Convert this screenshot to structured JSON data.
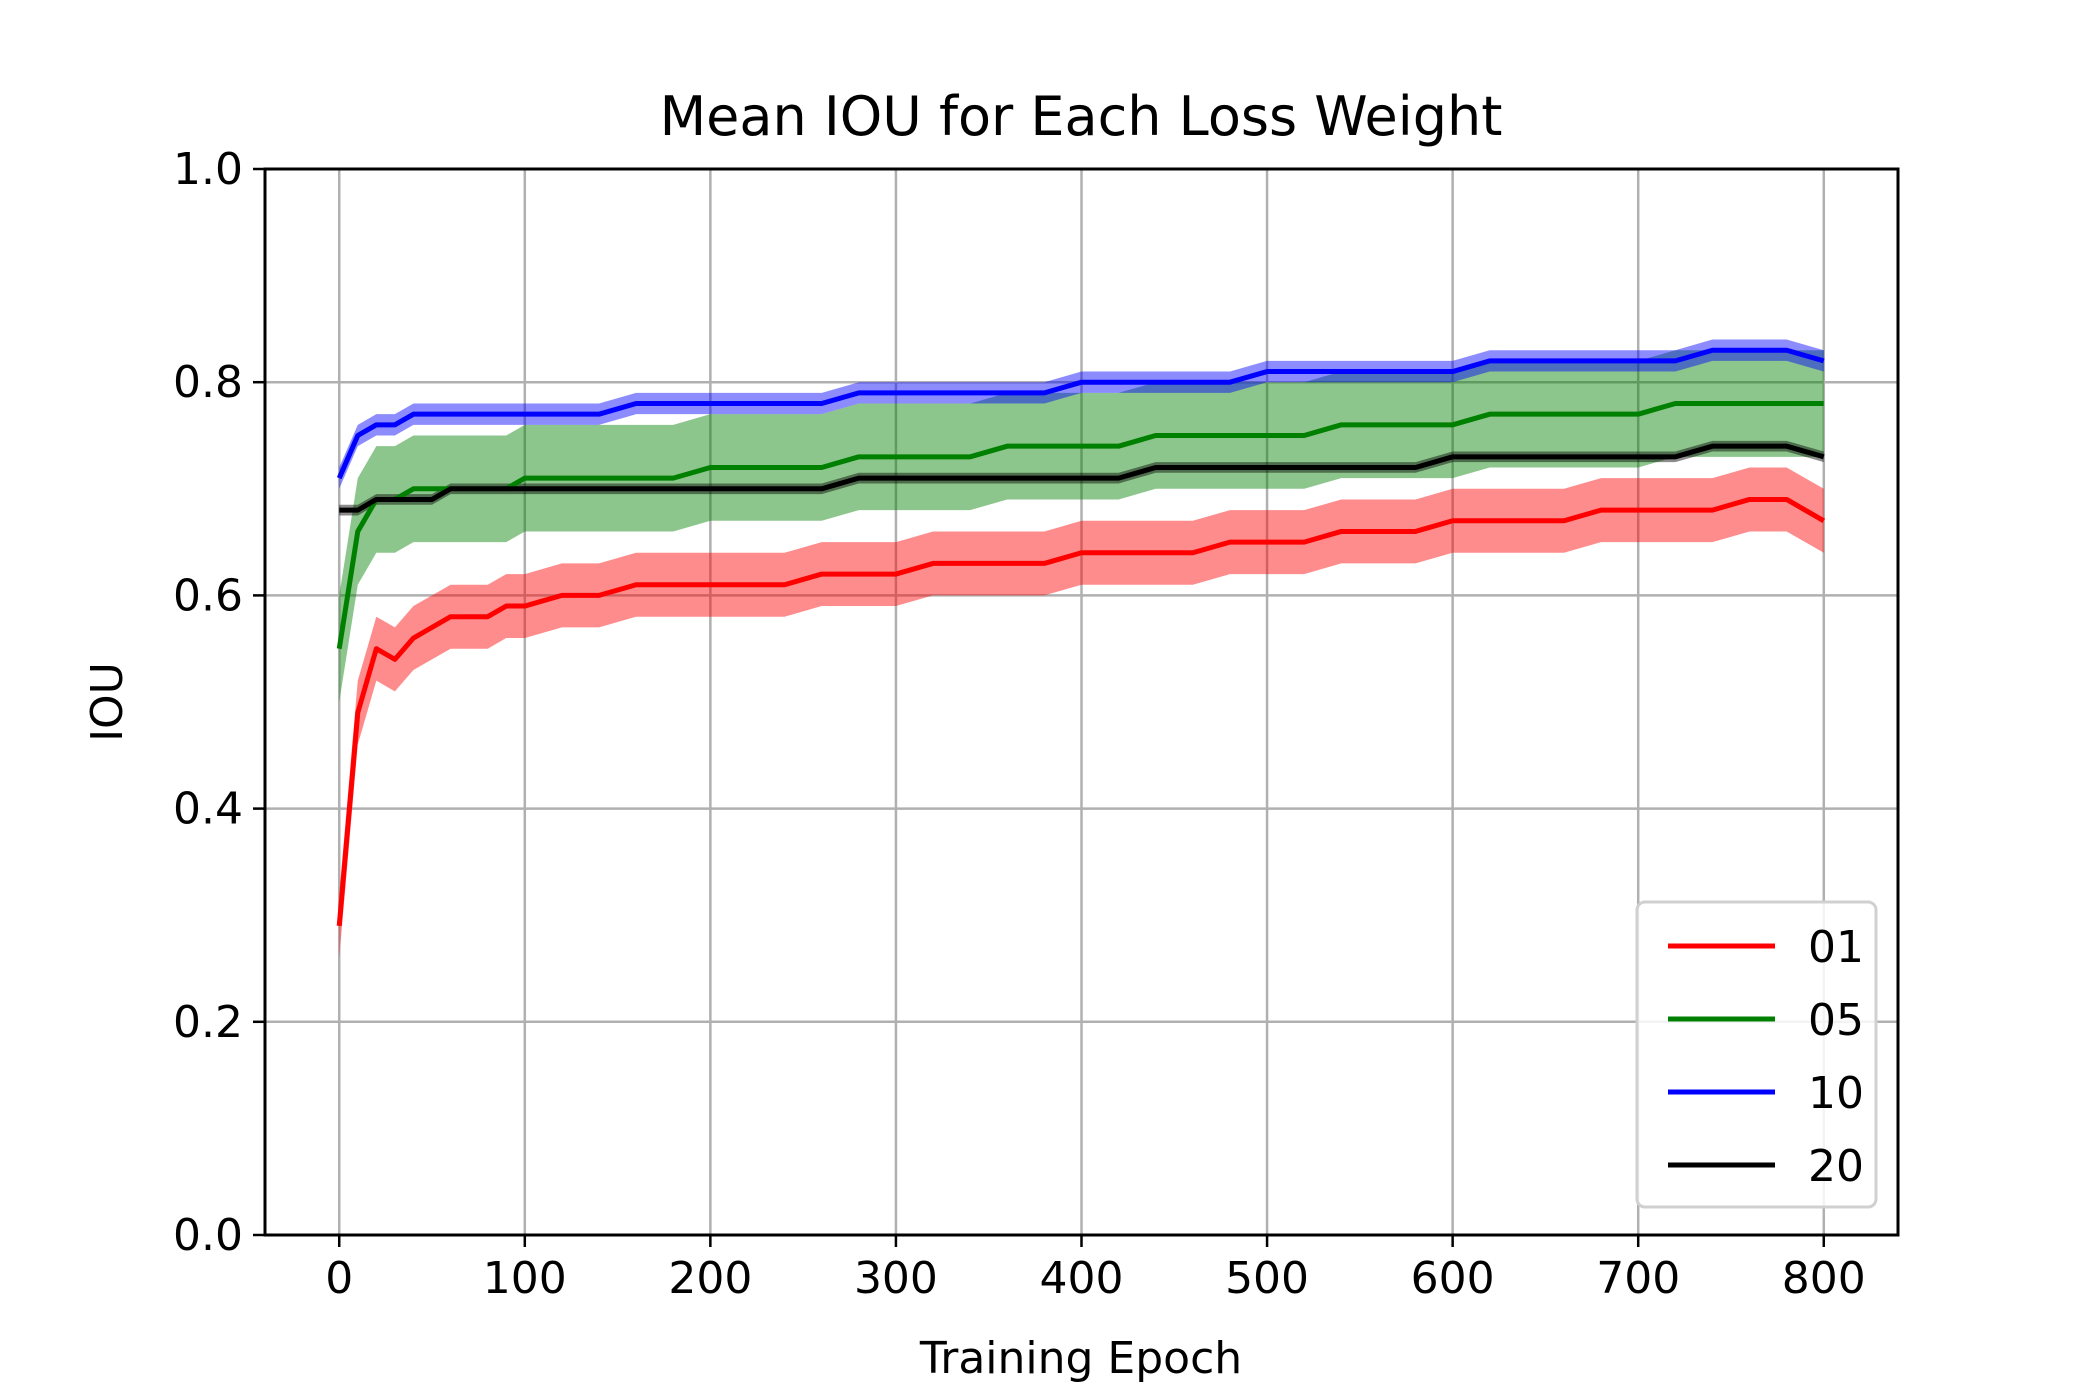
{
  "chart_data": {
    "type": "line",
    "title": "Mean IOU for Each Loss Weight",
    "xlabel": "Training Epoch",
    "ylabel": "IOU",
    "xlim": [
      -40,
      840
    ],
    "ylim": [
      0.0,
      1.0
    ],
    "xticks": [
      0,
      100,
      200,
      300,
      400,
      500,
      600,
      700,
      800
    ],
    "yticks": [
      0.0,
      0.2,
      0.4,
      0.6,
      0.8,
      1.0
    ],
    "xtick_labels": [
      "0",
      "100",
      "200",
      "300",
      "400",
      "500",
      "600",
      "700",
      "800"
    ],
    "ytick_labels": [
      "0.0",
      "0.2",
      "0.4",
      "0.6",
      "0.8",
      "1.0"
    ],
    "grid": true,
    "legend_position": "bottom-right",
    "shaded_band": "mean ± variation",
    "series": [
      {
        "name": "01",
        "color": "#ff0000",
        "x": [
          0,
          10,
          20,
          30,
          40,
          50,
          60,
          70,
          80,
          90,
          100,
          120,
          140,
          160,
          180,
          200,
          220,
          240,
          260,
          280,
          300,
          320,
          340,
          360,
          380,
          400,
          420,
          440,
          460,
          480,
          500,
          520,
          540,
          560,
          580,
          600,
          620,
          640,
          660,
          680,
          700,
          720,
          740,
          760,
          780,
          800
        ],
        "y": [
          0.29,
          0.49,
          0.55,
          0.54,
          0.56,
          0.57,
          0.58,
          0.58,
          0.58,
          0.59,
          0.59,
          0.6,
          0.6,
          0.61,
          0.61,
          0.61,
          0.61,
          0.61,
          0.62,
          0.62,
          0.62,
          0.63,
          0.63,
          0.63,
          0.63,
          0.64,
          0.64,
          0.64,
          0.64,
          0.65,
          0.65,
          0.65,
          0.66,
          0.66,
          0.66,
          0.67,
          0.67,
          0.67,
          0.67,
          0.68,
          0.68,
          0.68,
          0.68,
          0.69,
          0.69,
          0.67
        ],
        "band": 0.03
      },
      {
        "name": "05",
        "color": "#008000",
        "x": [
          0,
          10,
          20,
          30,
          40,
          50,
          60,
          70,
          80,
          90,
          100,
          120,
          140,
          160,
          180,
          200,
          220,
          240,
          260,
          280,
          300,
          320,
          340,
          360,
          380,
          400,
          420,
          440,
          460,
          480,
          500,
          520,
          540,
          560,
          580,
          600,
          620,
          640,
          660,
          680,
          700,
          720,
          740,
          760,
          780,
          800
        ],
        "y": [
          0.55,
          0.66,
          0.69,
          0.69,
          0.7,
          0.7,
          0.7,
          0.7,
          0.7,
          0.7,
          0.71,
          0.71,
          0.71,
          0.71,
          0.71,
          0.72,
          0.72,
          0.72,
          0.72,
          0.73,
          0.73,
          0.73,
          0.73,
          0.74,
          0.74,
          0.74,
          0.74,
          0.75,
          0.75,
          0.75,
          0.75,
          0.75,
          0.76,
          0.76,
          0.76,
          0.76,
          0.77,
          0.77,
          0.77,
          0.77,
          0.77,
          0.78,
          0.78,
          0.78,
          0.78,
          0.78
        ],
        "band": 0.05
      },
      {
        "name": "10",
        "color": "#0000ff",
        "x": [
          0,
          10,
          20,
          30,
          40,
          50,
          60,
          70,
          80,
          90,
          100,
          120,
          140,
          160,
          180,
          200,
          220,
          240,
          260,
          280,
          300,
          320,
          340,
          360,
          380,
          400,
          420,
          440,
          460,
          480,
          500,
          520,
          540,
          560,
          580,
          600,
          620,
          640,
          660,
          680,
          700,
          720,
          740,
          760,
          780,
          800
        ],
        "y": [
          0.71,
          0.75,
          0.76,
          0.76,
          0.77,
          0.77,
          0.77,
          0.77,
          0.77,
          0.77,
          0.77,
          0.77,
          0.77,
          0.78,
          0.78,
          0.78,
          0.78,
          0.78,
          0.78,
          0.79,
          0.79,
          0.79,
          0.79,
          0.79,
          0.79,
          0.8,
          0.8,
          0.8,
          0.8,
          0.8,
          0.81,
          0.81,
          0.81,
          0.81,
          0.81,
          0.81,
          0.82,
          0.82,
          0.82,
          0.82,
          0.82,
          0.82,
          0.83,
          0.83,
          0.83,
          0.82
        ],
        "band": 0.01
      },
      {
        "name": "20",
        "color": "#000000",
        "x": [
          0,
          10,
          20,
          30,
          40,
          50,
          60,
          70,
          80,
          90,
          100,
          120,
          140,
          160,
          180,
          200,
          220,
          240,
          260,
          280,
          300,
          320,
          340,
          360,
          380,
          400,
          420,
          440,
          460,
          480,
          500,
          520,
          540,
          560,
          580,
          600,
          620,
          640,
          660,
          680,
          700,
          720,
          740,
          760,
          780,
          800
        ],
        "y": [
          0.68,
          0.68,
          0.69,
          0.69,
          0.69,
          0.69,
          0.7,
          0.7,
          0.7,
          0.7,
          0.7,
          0.7,
          0.7,
          0.7,
          0.7,
          0.7,
          0.7,
          0.7,
          0.7,
          0.71,
          0.71,
          0.71,
          0.71,
          0.71,
          0.71,
          0.71,
          0.71,
          0.72,
          0.72,
          0.72,
          0.72,
          0.72,
          0.72,
          0.72,
          0.72,
          0.73,
          0.73,
          0.73,
          0.73,
          0.73,
          0.73,
          0.73,
          0.74,
          0.74,
          0.74,
          0.73
        ],
        "band": 0.005
      }
    ]
  }
}
